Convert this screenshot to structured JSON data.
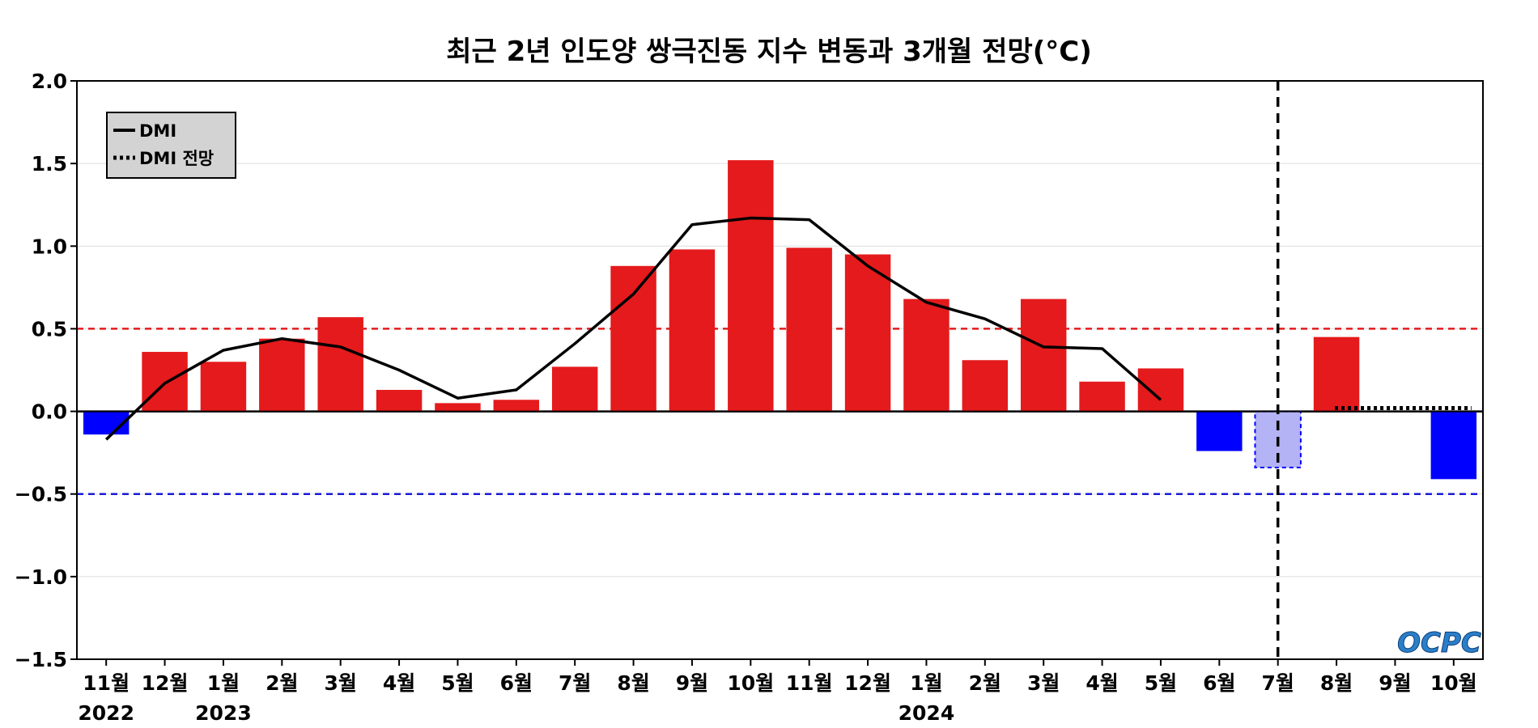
{
  "chart_data": {
    "type": "bar",
    "title": "최근 2년 인도양 쌍극진동 지수 변동과 3개월 전망(°C)",
    "xlabel": "",
    "ylabel": "",
    "ylim": [
      -1.5,
      2.0
    ],
    "yticks": [
      "2.0",
      "1.5",
      "1.0",
      "0.5",
      "0.0",
      "−0.5",
      "−1.0",
      "−1.5"
    ],
    "ytick_values": [
      2.0,
      1.5,
      1.0,
      0.5,
      0.0,
      -0.5,
      -1.0,
      -1.5
    ],
    "categories": [
      "11월",
      "12월",
      "1월",
      "2월",
      "3월",
      "4월",
      "5월",
      "6월",
      "7월",
      "8월",
      "9월",
      "10월",
      "11월",
      "12월",
      "1월",
      "2월",
      "3월",
      "4월",
      "5월",
      "6월",
      "7월",
      "8월",
      "9월",
      "10월"
    ],
    "year_labels": [
      {
        "index": 0,
        "label": "2022"
      },
      {
        "index": 2,
        "label": "2023"
      },
      {
        "index": 14,
        "label": "2024"
      }
    ],
    "bars": {
      "values": [
        -0.14,
        0.36,
        0.3,
        0.44,
        0.57,
        0.13,
        0.05,
        0.07,
        0.27,
        0.88,
        0.98,
        1.52,
        0.99,
        0.95,
        0.68,
        0.31,
        0.68,
        0.18,
        0.26,
        -0.24,
        -0.34,
        0.45,
        null,
        -0.41
      ],
      "styles": [
        "neg",
        "pos",
        "pos",
        "pos",
        "pos",
        "pos",
        "pos",
        "pos",
        "pos",
        "pos",
        "pos",
        "pos",
        "pos",
        "pos",
        "pos",
        "pos",
        "pos",
        "pos",
        "pos",
        "neg",
        "neg-light",
        "pos",
        "none",
        "neg"
      ]
    },
    "series": [
      {
        "name": "DMI",
        "style": "solid",
        "values": [
          -0.17,
          0.17,
          0.37,
          0.44,
          0.39,
          0.25,
          0.08,
          0.13,
          0.41,
          0.71,
          1.13,
          1.17,
          1.16,
          0.88,
          0.66,
          0.56,
          0.39,
          0.38,
          0.07,
          null,
          null,
          null,
          null,
          null
        ]
      },
      {
        "name": "DMI 전망",
        "style": "dotted",
        "values": [
          null,
          null,
          null,
          null,
          null,
          null,
          null,
          null,
          null,
          null,
          null,
          null,
          null,
          null,
          null,
          null,
          null,
          null,
          null,
          null,
          null,
          0.02,
          0.02,
          0.02
        ]
      }
    ],
    "reference_lines": [
      {
        "value": 0.5,
        "color": "#e41a1c",
        "style": "dashed"
      },
      {
        "value": -0.5,
        "color": "#1a1ad6",
        "style": "dashed"
      },
      {
        "value": 0.0,
        "color": "#000000",
        "style": "solid"
      }
    ],
    "vertical_marker": {
      "index": 20,
      "style": "dashed",
      "color": "#000000"
    },
    "legend": {
      "position": "top-left",
      "entries": [
        "DMI",
        "DMI 전망"
      ]
    },
    "grid": "horizontal",
    "colors": {
      "positive": "#e41a1c",
      "negative": "#0000ff",
      "negative_light": "#b3b3f5",
      "negative_light_border": "#0000ff",
      "line": "#000000",
      "grid": "#dddddd",
      "legend_bg": "#d3d3d3"
    }
  },
  "logo": {
    "text": "OCPC"
  }
}
